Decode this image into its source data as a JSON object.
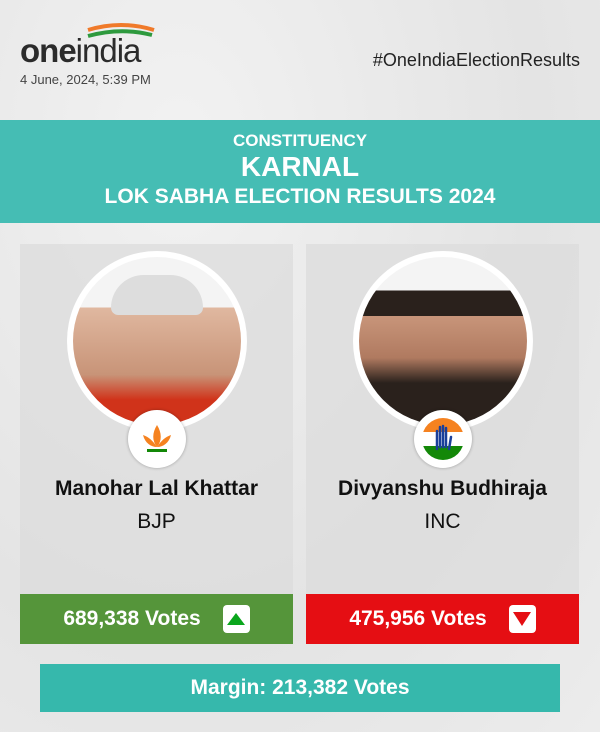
{
  "header": {
    "logo_text": "oneindia",
    "date": "4 June, 2024, 5:39 PM",
    "hashtag": "#OneIndiaElectionResults"
  },
  "banner": {
    "label": "CONSTITUENCY",
    "constituency": "KARNAL",
    "subtitle": "LOK SABHA ELECTION RESULTS 2024"
  },
  "candidates": [
    {
      "name": "Manohar Lal Khattar",
      "party": "BJP",
      "votes": "689,338 Votes",
      "status": "up",
      "color": "#55953a",
      "party_icon": "lotus-icon"
    },
    {
      "name": "Divyanshu Budhiraja",
      "party": "INC",
      "votes": "475,956 Votes",
      "status": "down",
      "color": "#e50e13",
      "party_icon": "hand-icon"
    }
  ],
  "margin": "Margin: 213,382 Votes",
  "colors": {
    "banner": "#45bdb4",
    "margin": "#36b8ac",
    "up_arrow": "#0aa61c",
    "down_arrow": "#e50e13"
  }
}
